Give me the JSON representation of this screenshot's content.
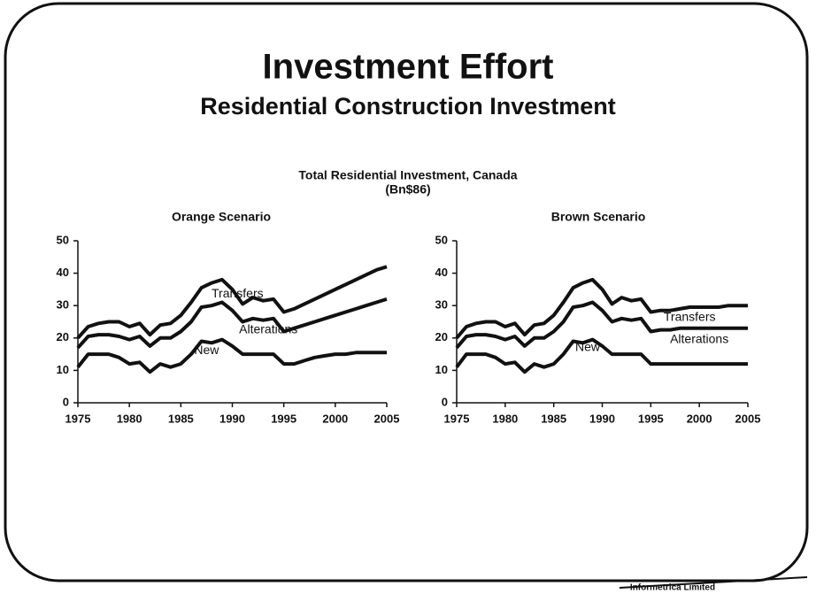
{
  "title": "Investment Effort",
  "subtitle": "Residential Construction Investment",
  "charts_title": "Total Residential Investment, Canada",
  "charts_unit": "(Bn$86)",
  "footer": "Informetrica Limited",
  "chart_data": [
    {
      "type": "line",
      "stacked": true,
      "title": "Orange Scenario",
      "x": [
        1975,
        1976,
        1977,
        1978,
        1979,
        1980,
        1981,
        1982,
        1983,
        1984,
        1985,
        1986,
        1987,
        1988,
        1989,
        1990,
        1991,
        1992,
        1993,
        1994,
        1995,
        1996,
        1997,
        1998,
        1999,
        2000,
        2001,
        2002,
        2003,
        2004,
        2005
      ],
      "series": [
        {
          "name": "New",
          "color": "#111111",
          "values": [
            11,
            15,
            15,
            15,
            14,
            12,
            12.5,
            9.5,
            12,
            11,
            12,
            15,
            19,
            18.5,
            19.5,
            17.5,
            15,
            15,
            15,
            15,
            12,
            12,
            13,
            14,
            14.5,
            15,
            15,
            15.5,
            15.5,
            15.5,
            15.5
          ]
        },
        {
          "name": "Alterations",
          "color": "#111111",
          "values": [
            6,
            5.5,
            6,
            6,
            6.5,
            7.5,
            8,
            8,
            8,
            9,
            10,
            10,
            10.5,
            11.5,
            11.5,
            11,
            10,
            11,
            10.5,
            11,
            10,
            11,
            11,
            11,
            11.5,
            12,
            13,
            13.5,
            14.5,
            15.5,
            16.5
          ]
        },
        {
          "name": "Transfers",
          "color": "#111111",
          "values": [
            3,
            3,
            3.5,
            4,
            4.5,
            4,
            4,
            3.5,
            4,
            4.5,
            5,
            6,
            6,
            7,
            7,
            6.5,
            5.5,
            6.5,
            6,
            6,
            6,
            6,
            6.5,
            7,
            7.5,
            8,
            8.5,
            9,
            9.5,
            10,
            10
          ]
        }
      ],
      "xlim": [
        1975,
        2005
      ],
      "xticks": [
        1975,
        1980,
        1985,
        1990,
        1995,
        2000,
        2005
      ],
      "ylim": [
        0,
        50
      ],
      "yticks": [
        0,
        10,
        20,
        30,
        40,
        50
      ]
    },
    {
      "type": "line",
      "stacked": true,
      "title": "Brown Scenario",
      "x": [
        1975,
        1976,
        1977,
        1978,
        1979,
        1980,
        1981,
        1982,
        1983,
        1984,
        1985,
        1986,
        1987,
        1988,
        1989,
        1990,
        1991,
        1992,
        1993,
        1994,
        1995,
        1996,
        1997,
        1998,
        1999,
        2000,
        2001,
        2002,
        2003,
        2004,
        2005
      ],
      "series": [
        {
          "name": "New",
          "color": "#111111",
          "values": [
            11,
            15,
            15,
            15,
            14,
            12,
            12.5,
            9.5,
            12,
            11,
            12,
            15,
            19,
            18.5,
            19.5,
            17.5,
            15,
            15,
            15,
            15,
            12,
            12,
            12,
            12,
            12,
            12,
            12,
            12,
            12,
            12,
            12
          ]
        },
        {
          "name": "Alterations",
          "color": "#111111",
          "values": [
            6,
            5.5,
            6,
            6,
            6.5,
            7.5,
            8,
            8,
            8,
            9,
            10,
            10,
            10.5,
            11.5,
            11.5,
            11,
            10,
            11,
            10.5,
            11,
            10,
            10.5,
            10.5,
            11,
            11,
            11,
            11,
            11,
            11,
            11,
            11
          ]
        },
        {
          "name": "Transfers",
          "color": "#111111",
          "values": [
            3,
            3,
            3.5,
            4,
            4.5,
            4,
            4,
            3.5,
            4,
            4.5,
            5,
            6,
            6,
            7,
            7,
            6.5,
            5.5,
            6.5,
            6,
            6,
            6,
            6,
            6,
            6,
            6.5,
            6.5,
            6.5,
            6.5,
            7,
            7,
            7
          ]
        }
      ],
      "xlim": [
        1975,
        2005
      ],
      "xticks": [
        1975,
        1980,
        1985,
        1990,
        1995,
        2000,
        2005
      ],
      "ylim": [
        0,
        50
      ],
      "yticks": [
        0,
        10,
        20,
        30,
        40,
        50
      ]
    }
  ]
}
